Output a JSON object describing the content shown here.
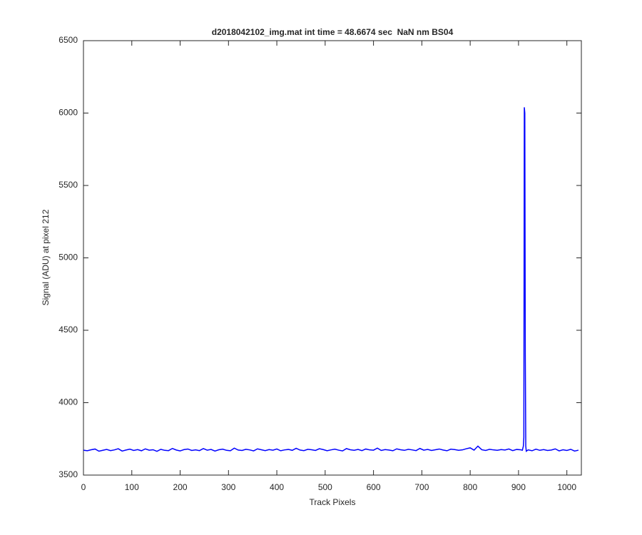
{
  "chart_data": {
    "type": "line",
    "title": "d2018042102_img.mat int time = 48.6674 sec  NaN nm BS04",
    "x_label": "Track Pixels",
    "y_label": "Signal (ADU) at pixel 212",
    "color": "#0000ff",
    "xlim": [
      0,
      1030
    ],
    "ylim": [
      3500,
      6500
    ],
    "xticks": [
      0,
      100,
      200,
      300,
      400,
      500,
      600,
      700,
      800,
      900,
      1000
    ],
    "yticks": [
      3500,
      4000,
      4500,
      5000,
      5500,
      6000,
      6500
    ],
    "x": [
      0,
      8,
      16,
      24,
      32,
      40,
      48,
      56,
      64,
      72,
      80,
      88,
      96,
      104,
      112,
      120,
      128,
      136,
      144,
      152,
      160,
      168,
      176,
      184,
      192,
      200,
      208,
      216,
      224,
      232,
      240,
      248,
      256,
      264,
      272,
      280,
      288,
      296,
      304,
      312,
      320,
      328,
      336,
      344,
      352,
      360,
      368,
      376,
      384,
      392,
      400,
      408,
      416,
      424,
      432,
      440,
      448,
      456,
      464,
      472,
      480,
      488,
      496,
      504,
      512,
      520,
      528,
      536,
      544,
      552,
      560,
      568,
      576,
      584,
      592,
      600,
      608,
      616,
      624,
      632,
      640,
      648,
      656,
      664,
      672,
      680,
      688,
      696,
      704,
      712,
      720,
      728,
      736,
      744,
      752,
      760,
      768,
      776,
      784,
      792,
      800,
      808,
      816,
      824,
      832,
      840,
      848,
      856,
      864,
      872,
      880,
      888,
      896,
      904,
      908,
      910,
      911,
      912,
      913,
      914,
      915,
      916,
      920,
      928,
      936,
      944,
      952,
      960,
      968,
      976,
      984,
      992,
      1000,
      1008,
      1016,
      1024
    ],
    "values": [
      3672,
      3668,
      3675,
      3680,
      3665,
      3671,
      3677,
      3669,
      3674,
      3682,
      3666,
      3673,
      3679,
      3670,
      3676,
      3668,
      3681,
      3672,
      3675,
      3664,
      3678,
      3671,
      3669,
      3684,
      3673,
      3667,
      3676,
      3680,
      3670,
      3674,
      3669,
      3683,
      3672,
      3677,
      3666,
      3675,
      3679,
      3671,
      3668,
      3686,
      3673,
      3670,
      3678,
      3674,
      3667,
      3681,
      3675,
      3669,
      3676,
      3672,
      3680,
      3668,
      3674,
      3677,
      3671,
      3685,
      3673,
      3669,
      3678,
      3675,
      3670,
      3682,
      3676,
      3668,
      3674,
      3679,
      3672,
      3667,
      3683,
      3675,
      3671,
      3677,
      3669,
      3680,
      3674,
      3672,
      3686,
      3670,
      3676,
      3673,
      3668,
      3681,
      3675,
      3671,
      3678,
      3674,
      3669,
      3684,
      3672,
      3677,
      3670,
      3675,
      3680,
      3673,
      3668,
      3679,
      3676,
      3671,
      3674,
      3682,
      3688,
      3672,
      3700,
      3675,
      3670,
      3678,
      3674,
      3671,
      3676,
      3673,
      3680,
      3669,
      3677,
      3675,
      3672,
      3700,
      3760,
      6040,
      6000,
      4330,
      3700,
      3665,
      3674,
      3668,
      3679,
      3671,
      3676,
      3670,
      3673,
      3681,
      3667,
      3675,
      3670,
      3678,
      3666,
      3672
    ]
  }
}
